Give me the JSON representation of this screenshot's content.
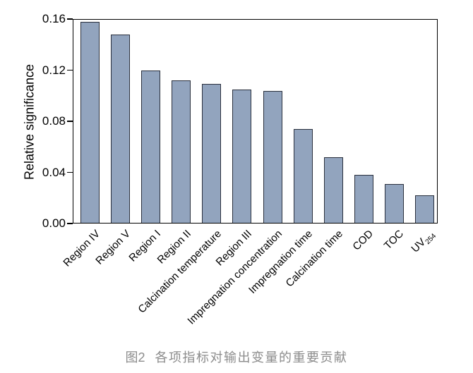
{
  "chart_data": {
    "type": "bar",
    "title": "",
    "ylabel": "Relative significance",
    "xlabel": "",
    "ylim": [
      0,
      0.16
    ],
    "yticks": [
      0,
      0.04,
      0.08,
      0.12,
      0.16
    ],
    "ytick_labels": [
      "0.00",
      "0.04",
      "0.08",
      "0.12",
      "0.16"
    ],
    "grid": false,
    "legend": "none",
    "bar_color": "#92a4be",
    "bar_edge_color": "#2a303d",
    "categories": [
      "Region IV",
      "Region V",
      "Region I",
      "Region II",
      "Calcination temperature",
      "Region III",
      "Impregnation concentration",
      "Impregnation time",
      "Calcination time",
      "COD",
      "TOC",
      {
        "label": "UV",
        "sub": "254"
      }
    ],
    "values": [
      0.158,
      0.148,
      0.12,
      0.112,
      0.109,
      0.105,
      0.104,
      0.074,
      0.052,
      0.038,
      0.031,
      0.022
    ]
  },
  "caption": {
    "label": "图2",
    "text": "各项指标对输出变量的重要贡献",
    "color": "#8c8c8c"
  }
}
